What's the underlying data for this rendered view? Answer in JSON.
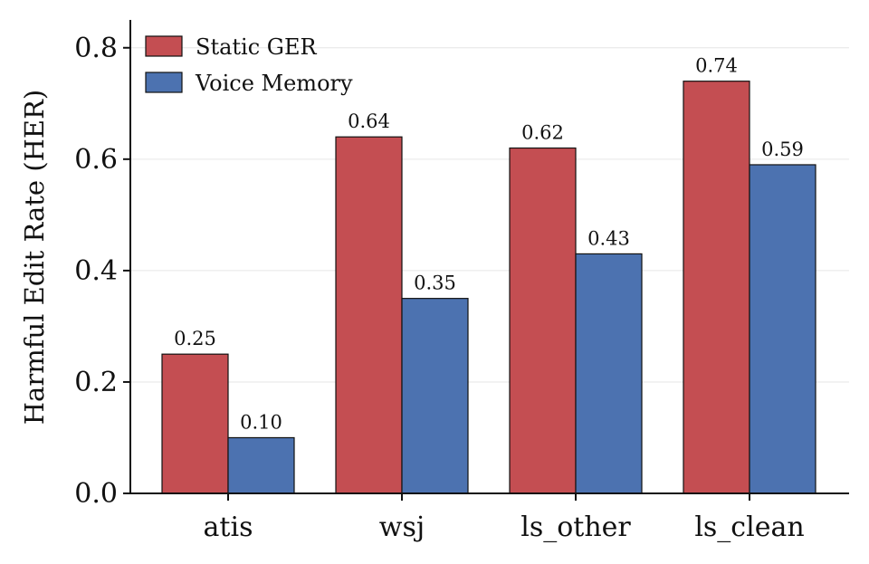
{
  "chart_data": {
    "type": "bar",
    "categories": [
      "atis",
      "wsj",
      "ls_other",
      "ls_clean"
    ],
    "series": [
      {
        "name": "Static GER",
        "values": [
          0.25,
          0.64,
          0.62,
          0.74
        ],
        "color": "#c44e52"
      },
      {
        "name": "Voice Memory",
        "values": [
          0.1,
          0.35,
          0.43,
          0.59
        ],
        "color": "#4c72b0"
      }
    ],
    "data_labels": [
      [
        "0.25",
        "0.64",
        "0.62",
        "0.74"
      ],
      [
        "0.10",
        "0.35",
        "0.43",
        "0.59"
      ]
    ],
    "title": "",
    "xlabel": "",
    "ylabel": "Harmful Edit Rate (HER)",
    "ylim": [
      0,
      0.85
    ],
    "yticks": [
      0.0,
      0.2,
      0.4,
      0.6,
      0.8
    ],
    "ytick_labels": [
      "0.0",
      "0.2",
      "0.4",
      "0.6",
      "0.8"
    ],
    "grid": "horizontal",
    "legend_position": "top-left"
  }
}
